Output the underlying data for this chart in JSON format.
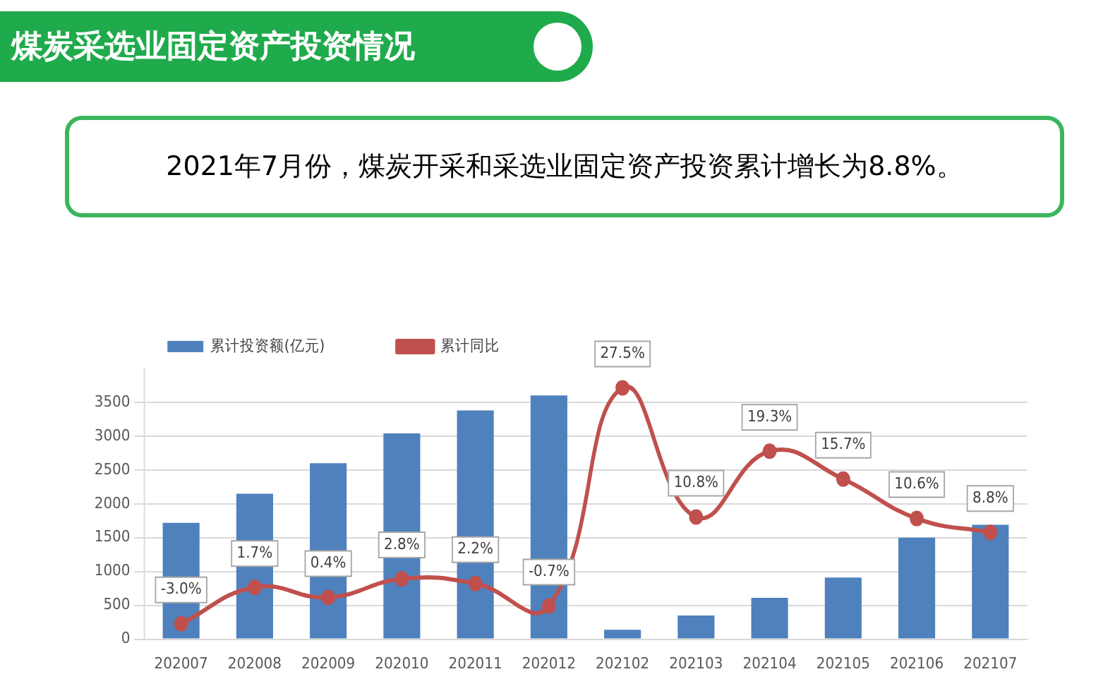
{
  "chart_data": {
    "type": "bar",
    "title": "煤炭采选业固定资产投资情况",
    "subtitle": "2021年7月份，煤炭开采和采选业固定资产投资累计增长为8.8%。",
    "categories": [
      "202007",
      "202008",
      "202009",
      "202010",
      "202011",
      "202012",
      "202102",
      "202103",
      "202104",
      "202105",
      "202106",
      "202107"
    ],
    "series": [
      {
        "name": "累计投资额(亿元)",
        "color": "#4f81bd",
        "values": [
          1720,
          2150,
          2600,
          3040,
          3380,
          3600,
          140,
          350,
          610,
          910,
          1500,
          1690
        ]
      },
      {
        "name": "累计同比",
        "type": "line",
        "axis": "y2",
        "color": "#c0504d",
        "values": [
          -3.0,
          1.7,
          0.4,
          2.8,
          2.2,
          -0.7,
          27.5,
          10.8,
          19.3,
          15.7,
          10.6,
          8.8
        ],
        "value_labels": [
          "-3.0%",
          "1.7%",
          "0.4%",
          "2.8%",
          "2.2%",
          "-0.7%",
          "27.5%",
          "10.8%",
          "19.3%",
          "15.7%",
          "10.6%",
          "8.8%"
        ]
      }
    ],
    "ylim": [
      0,
      4000
    ],
    "yticks": [
      0,
      500,
      1000,
      1500,
      2000,
      2500,
      3000,
      3500
    ],
    "tick_labels": "xy",
    "grid": "y",
    "legend": "top",
    "marker": "circle",
    "line_style": "solid"
  }
}
